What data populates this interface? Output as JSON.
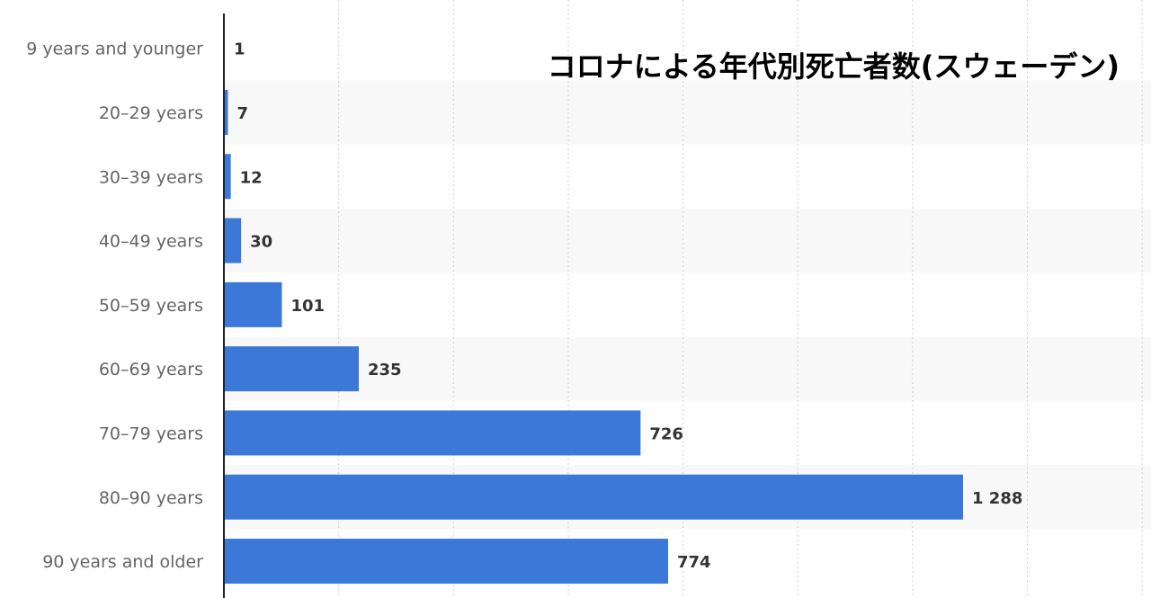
{
  "colors": {
    "bar": "#3b78d8",
    "stripe": "#f8f8f8",
    "grid": "#cfcfcf",
    "axis": "#222222"
  },
  "chart_data": {
    "type": "bar",
    "orientation": "horizontal",
    "title": "コロナによる年代別死亡者数(スウェーデン)",
    "categories": [
      "9 years and younger",
      "20–29 years",
      "30–39 years",
      "40–49 years",
      "50–59 years",
      "60–69 years",
      "70–79 years",
      "80–90 years",
      "90 years and older"
    ],
    "values": [
      1,
      7,
      12,
      30,
      101,
      235,
      726,
      1288,
      774
    ],
    "value_labels": [
      "1",
      "7",
      "12",
      "30",
      "101",
      "235",
      "726",
      "1 288",
      "774"
    ],
    "xlim": [
      0,
      1600
    ],
    "grid": true,
    "grid_step": 200,
    "xlabel": "",
    "ylabel": ""
  }
}
